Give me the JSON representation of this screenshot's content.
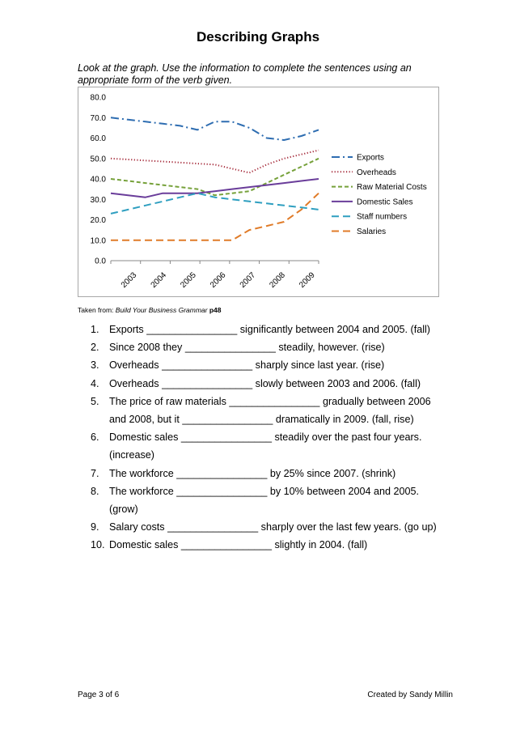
{
  "page": {
    "title": "Describing Graphs",
    "instructions": "Look at the graph. Use the information to complete the sentences using an appropriate form of the verb given.",
    "source": {
      "prefix": "Taken from: ",
      "book": "Build Your Business Grammar",
      "page": "p48"
    },
    "footer": {
      "left": "Page 3 of 6",
      "right": "Created by Sandy Millin"
    }
  },
  "questions": [
    {
      "num": "1.",
      "text": "Exports ________________ significantly between 2004 and 2005. (fall)"
    },
    {
      "num": "2.",
      "text": "Since 2008 they ________________ steadily, however. (rise)"
    },
    {
      "num": "3.",
      "text": "Overheads ________________ sharply since last year. (rise)"
    },
    {
      "num": "4.",
      "text": "Overheads ________________ slowly between 2003 and 2006. (fall)"
    },
    {
      "num": "5.",
      "text": "The price of raw materials ________________ gradually between 2006 and 2008, but it ________________ dramatically in 2009. (fall, rise)"
    },
    {
      "num": "6.",
      "text": "Domestic sales ________________ steadily over the past four years. (increase)"
    },
    {
      "num": "7.",
      "text": "The workforce ________________ by 25% since 2007. (shrink)"
    },
    {
      "num": "8.",
      "text": "The workforce ________________ by 10% between 2004 and 2005. (grow)"
    },
    {
      "num": "9.",
      "text": "Salary costs ________________ sharply over the last few years. (go up)"
    },
    {
      "num": "10.",
      "text": "Domestic sales ________________ slightly in 2004. (fall)"
    }
  ],
  "chart_data": {
    "type": "line",
    "x": [
      2003,
      2003.5,
      2004,
      2004.5,
      2005,
      2005.5,
      2006,
      2006.5,
      2007,
      2007.5,
      2008,
      2008.5,
      2009
    ],
    "x_tick_labels": [
      "2003",
      "2004",
      "2005",
      "2006",
      "2007",
      "2008",
      "2009"
    ],
    "ylim": [
      0,
      80
    ],
    "y_ticks": [
      "0.0",
      "10.0",
      "20.0",
      "30.0",
      "40.0",
      "50.0",
      "60.0",
      "70.0",
      "80.0"
    ],
    "grid": false,
    "legend_position": "right",
    "series": [
      {
        "name": "Exports",
        "color": "#2e6db1",
        "dash": "dashdot",
        "values": [
          70,
          69,
          68,
          67,
          66,
          64,
          68,
          68,
          65,
          60,
          59,
          61,
          64
        ]
      },
      {
        "name": "Overheads",
        "color": "#a52a3a",
        "dash": "dotted",
        "values": [
          50,
          49.5,
          49,
          48.5,
          48,
          47.5,
          47,
          45,
          43,
          47,
          50,
          52,
          54
        ]
      },
      {
        "name": "Raw Material Costs",
        "color": "#76a13a",
        "dash": "dashed",
        "values": [
          40,
          39,
          38,
          37,
          36,
          35,
          32,
          33,
          34,
          38,
          42,
          46,
          50
        ]
      },
      {
        "name": "Domestic Sales",
        "color": "#6a3d9a",
        "dash": "solid",
        "values": [
          33,
          32,
          31,
          33,
          33,
          33,
          34,
          35,
          36,
          37,
          38,
          39,
          40
        ]
      },
      {
        "name": "Staff numbers",
        "color": "#2f9fc0",
        "dash": "longdash",
        "values": [
          23,
          25,
          27,
          29,
          31,
          33,
          31,
          30,
          29,
          28,
          27,
          26,
          25
        ]
      },
      {
        "name": "Salaries",
        "color": "#e07b28",
        "dash": "longdash",
        "values": [
          10,
          10,
          10,
          10,
          10,
          10,
          10,
          10,
          15,
          17,
          19,
          25,
          33
        ]
      }
    ]
  }
}
